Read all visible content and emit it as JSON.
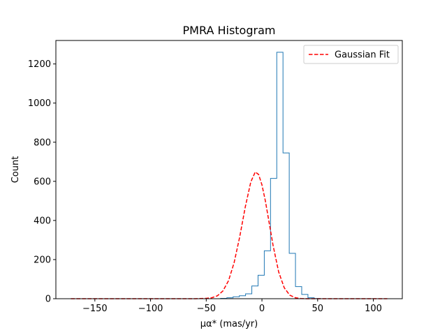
{
  "chart_data": {
    "type": "histogram",
    "title": "PMRA Histogram",
    "xlabel": "μα* (mas/yr)",
    "ylabel": "Count",
    "xlim": [
      -185,
      126
    ],
    "ylim": [
      0,
      1320
    ],
    "xticks": [
      -150,
      -100,
      -50,
      0,
      50,
      100
    ],
    "xtick_labels": [
      "−150",
      "−100",
      "−50",
      "0",
      "50",
      "100"
    ],
    "yticks": [
      0,
      200,
      400,
      600,
      800,
      1000,
      1200
    ],
    "ytick_labels": [
      "0",
      "200",
      "400",
      "600",
      "800",
      "1000",
      "1200"
    ],
    "grid": false,
    "legend_position": "upper right",
    "series": [
      {
        "name": "",
        "kind": "step-histogram",
        "color": "#1f77b4",
        "bin_start": -171.5,
        "bin_width": 5.6,
        "counts": [
          0,
          0,
          0,
          0,
          0,
          0,
          0,
          0,
          0,
          0,
          0,
          0,
          0,
          0,
          0,
          0,
          0,
          0,
          0,
          0,
          0,
          0,
          0,
          0,
          2,
          5,
          10,
          15,
          25,
          65,
          120,
          245,
          615,
          1260,
          745,
          232,
          62,
          22,
          5,
          1,
          0,
          0,
          0,
          0,
          0,
          0,
          0,
          0,
          0,
          0
        ]
      },
      {
        "name": "Gaussian Fit",
        "kind": "line",
        "style": "dashed",
        "color": "#ff0000",
        "x": [
          -171.5,
          -150,
          -130,
          -110,
          -90,
          -70,
          -60,
          -50,
          -45,
          -40,
          -35,
          -30,
          -25,
          -20,
          -15,
          -10,
          -6,
          -3,
          0,
          3,
          6,
          10,
          15,
          20,
          25,
          30,
          35,
          40,
          50,
          60,
          80,
          100,
          112.5
        ],
        "y": [
          0,
          0,
          0,
          0,
          0,
          0,
          0,
          2,
          5,
          15,
          40,
          92,
          184,
          315,
          468,
          597,
          648,
          635,
          582,
          502,
          404,
          272,
          137,
          56,
          18,
          5,
          1,
          0,
          0,
          0,
          0,
          0,
          0
        ]
      }
    ]
  }
}
